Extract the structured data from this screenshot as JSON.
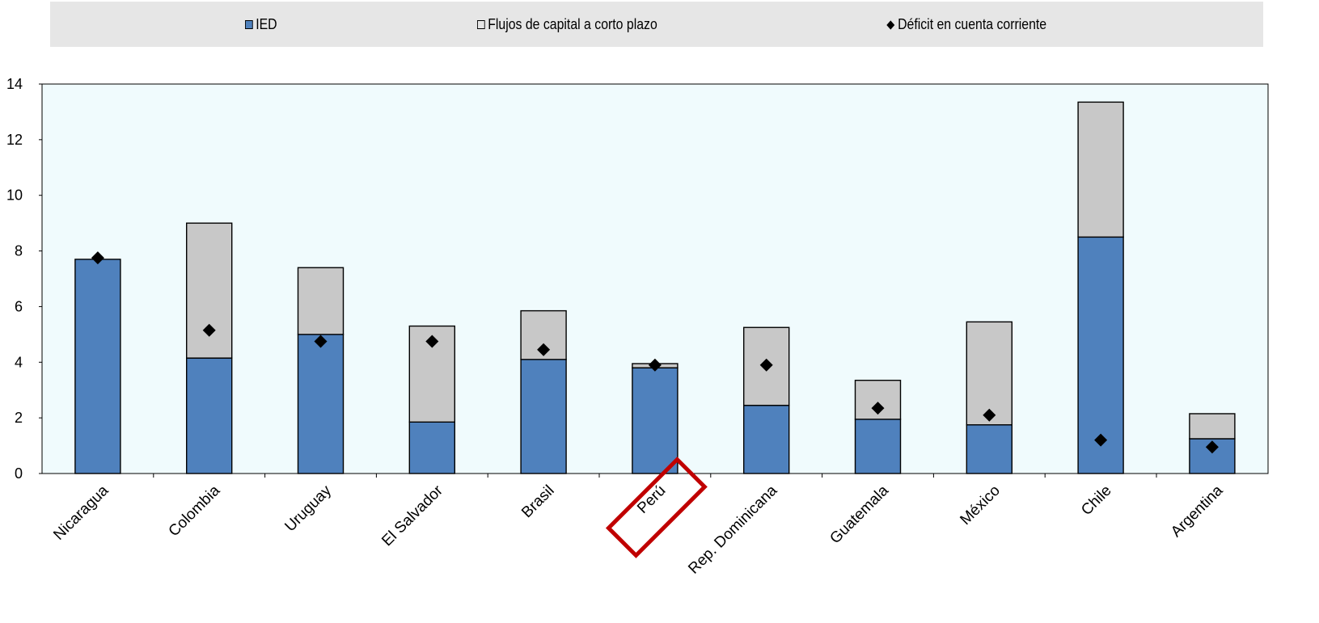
{
  "chart_data": {
    "type": "bar",
    "stacked": true,
    "categories": [
      "Nicaragua",
      "Colombia",
      "Uruguay",
      "El Salvador",
      "Brasil",
      "Perú",
      "Rep. Dominicana",
      "Guatemala",
      "México",
      "Chile",
      "Argentina"
    ],
    "series": [
      {
        "name": "IED",
        "kind": "bar",
        "color": "#4f81bd",
        "values": [
          7.7,
          4.15,
          5.0,
          1.85,
          4.1,
          3.8,
          2.45,
          1.95,
          1.75,
          8.5,
          1.25
        ]
      },
      {
        "name": "Flujos de capital a corto plazo",
        "kind": "bar",
        "color": "#c8c8c8",
        "values": [
          0.0,
          4.85,
          2.4,
          3.45,
          1.75,
          0.15,
          2.8,
          1.4,
          3.7,
          4.85,
          0.9
        ]
      },
      {
        "name": "Déficit en cuenta corriente",
        "kind": "marker",
        "color": "#000000",
        "values": [
          7.75,
          5.15,
          4.75,
          4.75,
          4.45,
          3.9,
          3.9,
          2.35,
          2.1,
          1.2,
          0.95
        ]
      }
    ],
    "ylim": [
      0,
      14
    ],
    "yticks": [
      "0",
      "2",
      "4",
      "6",
      "8",
      "10",
      "12",
      "14"
    ],
    "grid": false,
    "legend_position": "top",
    "plot_background": "#f0fbfd",
    "highlight": {
      "category": "Perú",
      "color": "#c00000"
    }
  }
}
